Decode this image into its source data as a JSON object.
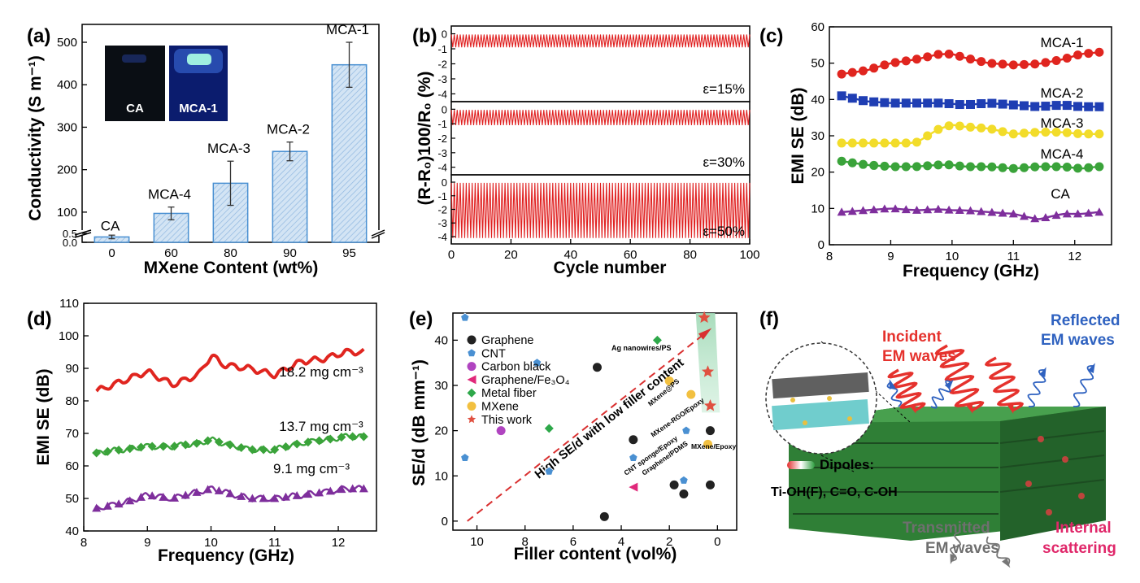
{
  "panels": {
    "a": {
      "label": "(a)"
    },
    "b": {
      "label": "(b)"
    },
    "c": {
      "label": "(c)"
    },
    "d": {
      "label": "(d)"
    },
    "e": {
      "label": "(e)"
    },
    "f": {
      "label": "(f)"
    }
  },
  "inset": {
    "left_label": "CA",
    "right_label": "MCA-1"
  },
  "schematic": {
    "incident": "Incident EM waves",
    "reflected": "Reflected EM waves",
    "transmitted": "Transmitted EM waves",
    "scattering": "Internal scattering",
    "dipoles_label": "Dipoles:",
    "dipoles_groups": "Ti-OH(F), C=O, C-OH",
    "colors": {
      "incident": "#e5322d",
      "reflected": "#2f62c0",
      "transmitted": "#777777",
      "scattering": "#e0286a",
      "block": "#2e8b3a"
    }
  },
  "chart_data": [
    {
      "id": "a",
      "type": "bar",
      "title": "",
      "xlabel": "MXene Content (wt%)",
      "ylabel": "Conductivity (S m⁻¹)",
      "categories": [
        "0",
        "60",
        "80",
        "90",
        "95"
      ],
      "bar_labels": [
        "CA",
        "MCA-4",
        "MCA-3",
        "MCA-2",
        "MCA-1"
      ],
      "values": [
        0.3,
        97,
        168,
        243,
        447
      ],
      "errors": [
        0.1,
        15,
        52,
        22,
        53
      ],
      "yticks": [
        "0.0",
        "0.5",
        "100",
        "200",
        "300",
        "400",
        "500"
      ],
      "ylim": [
        0,
        525
      ],
      "axis_break": [
        0.5,
        50
      ],
      "colors": {
        "bar_fill": "#c6dcf0",
        "bar_edge": "#4a90d2"
      }
    },
    {
      "id": "b",
      "type": "line",
      "xlabel": "Cycle number",
      "ylabel": "(R-R₀)100/R₀ (%)",
      "xlim": [
        0,
        100
      ],
      "xticks": [
        "0",
        "20",
        "40",
        "60",
        "80",
        "100"
      ],
      "color": "#e02020",
      "subplots": [
        {
          "strain_label": "ε=15%",
          "ylim": [
            -4.3,
            0.3
          ],
          "yticks": [
            "0",
            "-1",
            "-2",
            "-3",
            "-4"
          ],
          "amplitude_min": -0.9,
          "amplitude_max": -0.05
        },
        {
          "strain_label": "ε=30%",
          "ylim": [
            -4.3,
            0.3
          ],
          "yticks": [
            "0",
            "-1",
            "-2",
            "-3",
            "-4"
          ],
          "amplitude_min": -1.1,
          "amplitude_max": -0.05
        },
        {
          "strain_label": "ε=50%",
          "ylim": [
            -4.3,
            0.3
          ],
          "yticks": [
            "0",
            "-1",
            "-2",
            "-3",
            "-4"
          ],
          "amplitude_min": -4.1,
          "amplitude_max": -0.05
        }
      ]
    },
    {
      "id": "c",
      "type": "line",
      "xlabel": "Frequency (GHz)",
      "ylabel": "EMI SE (dB)",
      "xlim": [
        8,
        12.6
      ],
      "ylim": [
        0,
        60
      ],
      "xticks": [
        "8",
        "9",
        "10",
        "11",
        "12"
      ],
      "yticks": [
        "0",
        "10",
        "20",
        "30",
        "40",
        "50",
        "60"
      ],
      "x": [
        8.2,
        8.6,
        9.0,
        9.4,
        9.8,
        10.0,
        10.2,
        10.6,
        11.0,
        11.4,
        11.8,
        12.1,
        12.4
      ],
      "series": [
        {
          "name": "MCA-1",
          "color": "#e0251f",
          "marker": "circle",
          "values": [
            47,
            48,
            50,
            51,
            52.5,
            52.5,
            51.5,
            50,
            49.5,
            49.8,
            51,
            52.5,
            53
          ]
        },
        {
          "name": "MCA-2",
          "color": "#1f3eb3",
          "marker": "square",
          "values": [
            41,
            39.5,
            39,
            39,
            39,
            38.8,
            38.5,
            39,
            38.5,
            38,
            38.5,
            38,
            38
          ]
        },
        {
          "name": "MCA-3",
          "color": "#f2dc2a",
          "marker": "circle",
          "values": [
            28,
            28,
            28,
            28,
            32,
            33,
            32.5,
            32,
            30.5,
            31,
            31,
            30.5,
            30.5
          ]
        },
        {
          "name": "MCA-4",
          "color": "#3aa33a",
          "marker": "circle",
          "values": [
            23,
            22,
            21.5,
            21.5,
            22,
            22,
            21.5,
            21.5,
            21,
            21.5,
            21.5,
            21,
            21.5
          ]
        },
        {
          "name": "CA",
          "color": "#7e2e9c",
          "marker": "triangle",
          "values": [
            9,
            9.5,
            10,
            9.5,
            9.8,
            9.5,
            9.5,
            9,
            8.5,
            7,
            8.5,
            8.5,
            9
          ]
        }
      ]
    },
    {
      "id": "d",
      "type": "line",
      "xlabel": "Frequency (GHz)",
      "ylabel": "EMI SE (dB)",
      "xlim": [
        8,
        12.6
      ],
      "ylim": [
        40,
        110
      ],
      "xticks": [
        "8",
        "9",
        "10",
        "11",
        "12"
      ],
      "yticks": [
        "40",
        "50",
        "60",
        "70",
        "80",
        "90",
        "100",
        "110"
      ],
      "x": [
        8.2,
        8.6,
        9.0,
        9.4,
        9.8,
        10.0,
        10.2,
        10.6,
        11.0,
        11.4,
        11.8,
        12.1,
        12.4
      ],
      "series": [
        {
          "name": "18.2 mg cm⁻³",
          "color": "#e0251f",
          "marker": "line",
          "values": [
            83,
            86,
            89,
            85,
            88,
            94,
            91,
            90,
            88,
            92,
            93,
            95,
            95
          ]
        },
        {
          "name": "13.7 mg cm⁻³",
          "color": "#3aa33a",
          "marker": "diamond",
          "values": [
            64,
            65,
            66,
            66,
            67,
            68,
            67,
            65,
            65,
            67,
            68,
            69,
            69
          ]
        },
        {
          "name": "9.1 mg cm⁻³",
          "color": "#7e2e9c",
          "marker": "triangle",
          "values": [
            47,
            48.5,
            51,
            50,
            52,
            53,
            52,
            50,
            50,
            51,
            52,
            53,
            53
          ]
        }
      ]
    },
    {
      "id": "e",
      "type": "scatter",
      "xlabel": "Filler content (vol%)",
      "ylabel": "SE/d (dB mm⁻¹)",
      "xlim": [
        11,
        -0.8
      ],
      "ylim": [
        -2,
        46
      ],
      "xticks": [
        "10",
        "8",
        "6",
        "4",
        "2",
        "0"
      ],
      "yticks": [
        "0",
        "10",
        "20",
        "30",
        "40"
      ],
      "trend_label": "High SE/d with low filler content",
      "series": [
        {
          "name": "Graphene",
          "color": "#222222",
          "marker": "circle",
          "points": [
            [
              5,
              34
            ],
            [
              4.7,
              1
            ],
            [
              3.5,
              18
            ],
            [
              1.8,
              8
            ],
            [
              1.4,
              6
            ],
            [
              0.3,
              20
            ],
            [
              0.3,
              8
            ]
          ]
        },
        {
          "name": "CNT",
          "color": "#4a90d2",
          "marker": "pentagon",
          "points": [
            [
              10.5,
              45
            ],
            [
              10.5,
              14
            ],
            [
              7.5,
              35
            ],
            [
              7,
              11
            ],
            [
              3.5,
              14
            ],
            [
              1.4,
              9
            ],
            [
              1.3,
              20
            ]
          ]
        },
        {
          "name": "Carbon black",
          "color": "#b044c0",
          "marker": "circle",
          "points": [
            [
              9,
              20
            ]
          ]
        },
        {
          "name": "Graphene/Fe₃O₄",
          "color": "#e0287a",
          "marker": "triangle-left",
          "points": [
            [
              3.5,
              7.5
            ]
          ]
        },
        {
          "name": "Metal fiber",
          "color": "#2ea84a",
          "marker": "diamond",
          "points": [
            [
              7,
              20.5
            ],
            [
              2.5,
              40
            ]
          ]
        },
        {
          "name": "MXene",
          "color": "#f2c040",
          "marker": "circle",
          "points": [
            [
              2,
              31
            ],
            [
              1.1,
              28
            ],
            [
              0.4,
              17
            ]
          ]
        },
        {
          "name": "This work",
          "color": "#e05040",
          "marker": "star",
          "points": [
            [
              0.55,
              45
            ],
            [
              0.4,
              33
            ],
            [
              0.3,
              25.5
            ]
          ]
        }
      ],
      "annotations": [
        "Ag nanowires/PS",
        "MXene@PS",
        "MXene-RGO/Epoxy",
        "CNT sponge/Epoxy",
        "Graphene/PDMS",
        "MXene/Epoxy"
      ]
    }
  ]
}
